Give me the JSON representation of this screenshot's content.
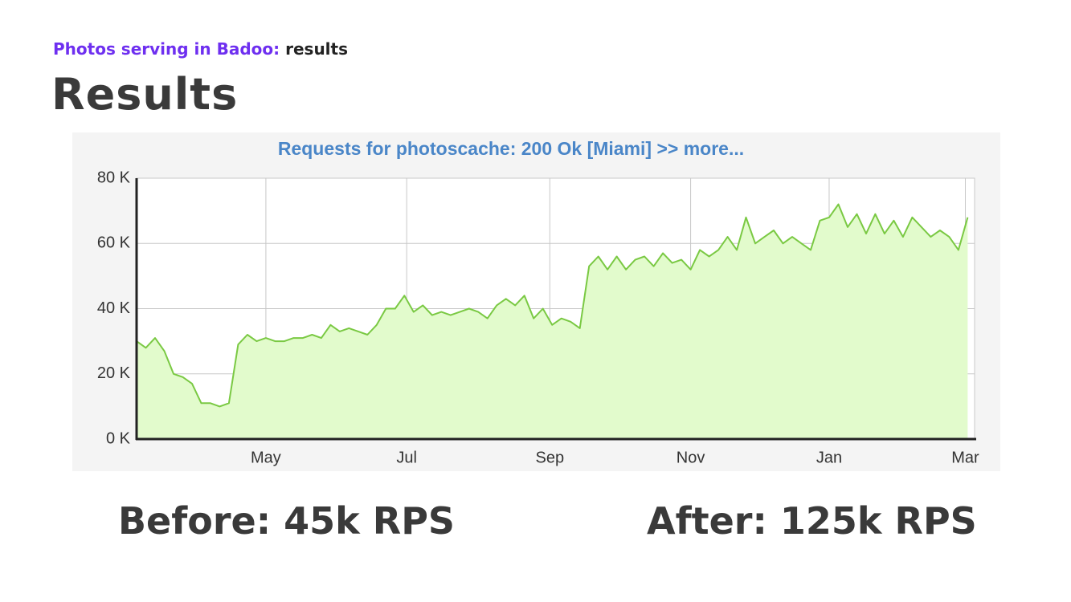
{
  "header": {
    "section": "Photos serving in Badoo:",
    "subsection": "results"
  },
  "title": "Results",
  "chart_data": {
    "type": "area",
    "title": "Requests for photoscache: 200 Ok [Miami] >> more...",
    "x": [
      0,
      4,
      8,
      12,
      16,
      20,
      24,
      28,
      32,
      36,
      40,
      44,
      48,
      52,
      56,
      60,
      64,
      68,
      72,
      76,
      80,
      84,
      88,
      92,
      96,
      100,
      104,
      108,
      112,
      116,
      120,
      124,
      128,
      132,
      136,
      140,
      144,
      148,
      152,
      156,
      160,
      164,
      168,
      172,
      176,
      180,
      184,
      188,
      192,
      196,
      200,
      204,
      208,
      212,
      216,
      220,
      224,
      228,
      232,
      236,
      240,
      244,
      248,
      252,
      256,
      260,
      264,
      268,
      272,
      276,
      280,
      284,
      288,
      292,
      296,
      300,
      304,
      308,
      312,
      316,
      320,
      324,
      328,
      332,
      336,
      340,
      344,
      348,
      352,
      356,
      360
    ],
    "series": [
      {
        "name": "200 Ok",
        "color": "#7ac943",
        "fill": "#e2fbcc",
        "values": [
          30,
          28,
          31,
          27,
          20,
          19,
          17,
          11,
          11,
          10,
          11,
          29,
          32,
          30,
          31,
          30,
          30,
          31,
          31,
          32,
          31,
          35,
          33,
          34,
          33,
          32,
          35,
          40,
          40,
          44,
          39,
          41,
          38,
          39,
          38,
          39,
          40,
          39,
          37,
          41,
          43,
          41,
          44,
          37,
          40,
          35,
          37,
          36,
          34,
          53,
          56,
          52,
          56,
          52,
          55,
          56,
          53,
          57,
          54,
          55,
          52,
          58,
          56,
          58,
          62,
          58,
          68,
          60,
          62,
          64,
          60,
          62,
          60,
          58,
          67,
          68,
          72,
          65,
          69,
          63,
          69,
          63,
          67,
          62,
          68,
          65,
          62,
          64,
          62,
          58,
          68
        ]
      }
    ],
    "xlim": [
      0,
      363
    ],
    "xticks": [
      {
        "value": 56,
        "label": "May"
      },
      {
        "value": 117,
        "label": "Jul"
      },
      {
        "value": 179,
        "label": "Sep"
      },
      {
        "value": 240,
        "label": "Nov"
      },
      {
        "value": 300,
        "label": "Jan"
      },
      {
        "value": 359,
        "label": "Mar"
      }
    ],
    "ylim": [
      0,
      80
    ],
    "yticks": [
      {
        "value": 0,
        "label": "0 K"
      },
      {
        "value": 20,
        "label": "20 K"
      },
      {
        "value": 40,
        "label": "40 K"
      },
      {
        "value": 60,
        "label": "60 K"
      },
      {
        "value": 80,
        "label": "80 K"
      }
    ],
    "grid": true
  },
  "footer": {
    "before": "Before: 45k RPS",
    "after": "After: 125k RPS"
  }
}
